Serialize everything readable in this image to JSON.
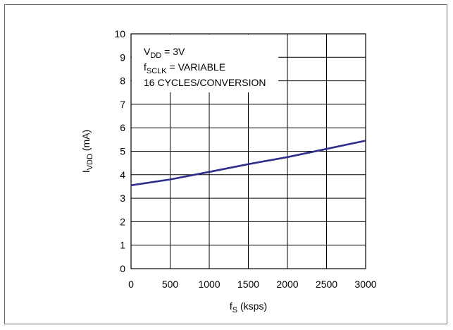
{
  "chart_data": {
    "type": "line",
    "xlabel": {
      "main": "f",
      "sub": "S",
      "rest": " (ksps)"
    },
    "ylabel": {
      "main": "I",
      "sub": "VDD",
      "rest": " (mA)"
    },
    "xlim": [
      0,
      3000
    ],
    "ylim": [
      0,
      10
    ],
    "xticks": [
      "0",
      "500",
      "1000",
      "1500",
      "2000",
      "2500",
      "3000"
    ],
    "yticks": [
      "0",
      "1",
      "2",
      "3",
      "4",
      "5",
      "6",
      "7",
      "8",
      "9",
      "10"
    ],
    "grid": true,
    "annotations": [
      {
        "main": "V",
        "sub": "DD",
        "rest": " = 3V"
      },
      {
        "main": "f",
        "sub": "SCLK",
        "rest": " = VARIABLE"
      },
      {
        "main": "16 CYCLES/CONVERSION",
        "sub": "",
        "rest": ""
      }
    ],
    "series": [
      {
        "color": "#2e2e8c",
        "x": [
          0,
          500,
          1000,
          1500,
          2000,
          2500,
          3000
        ],
        "y": [
          3.55,
          3.8,
          4.12,
          4.45,
          4.75,
          5.1,
          5.45
        ]
      }
    ]
  }
}
